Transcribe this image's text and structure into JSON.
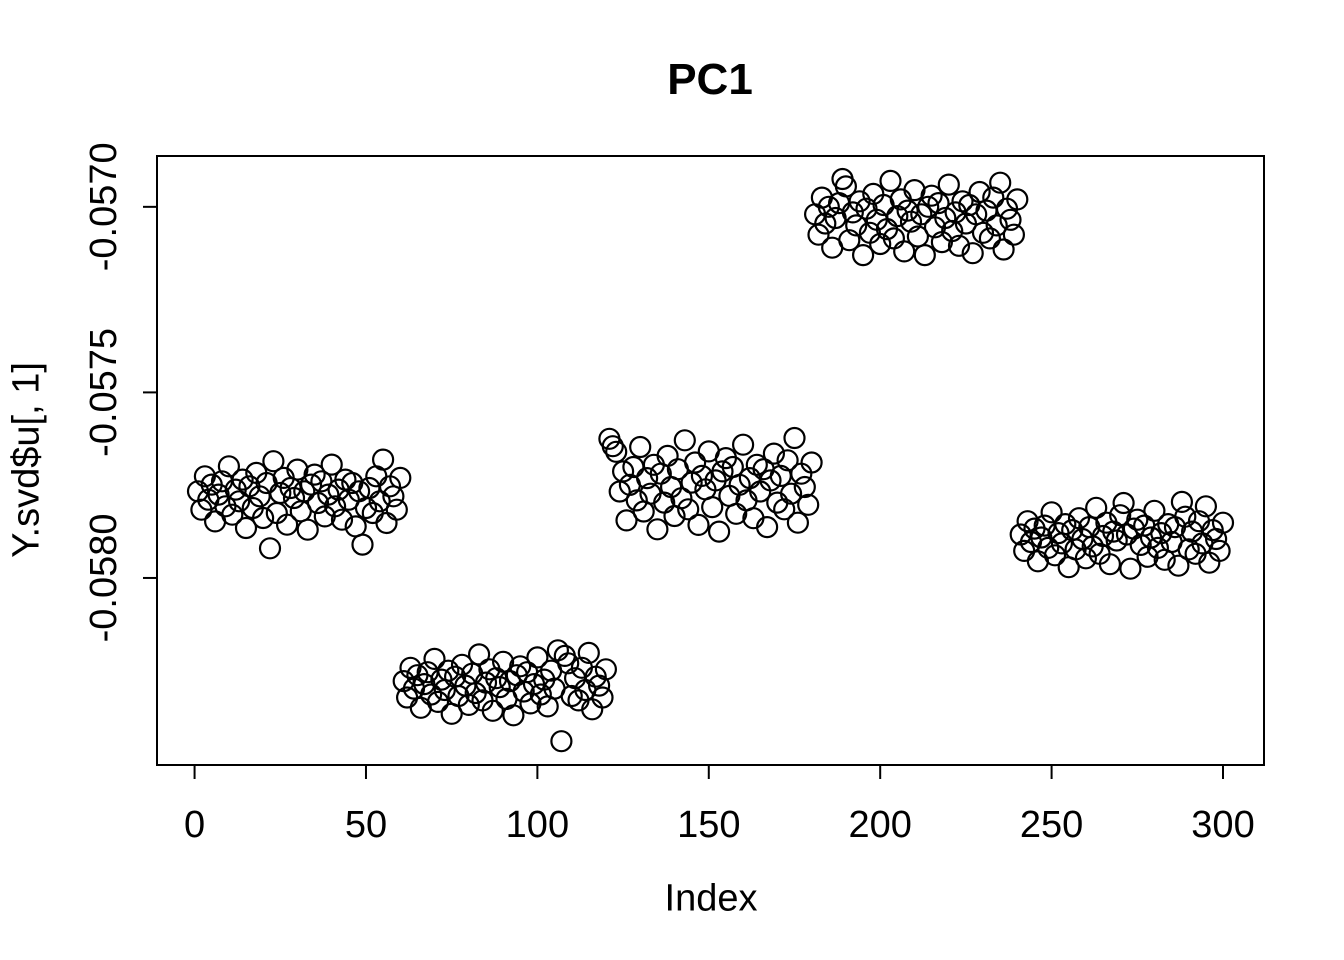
{
  "figure": {
    "background": "#FFFFFF",
    "foreground": "#000000"
  },
  "chart_data": {
    "type": "scatter",
    "title": "PC1",
    "xlabel": "Index",
    "ylabel": "Y.svd$u[, 1]",
    "marker": "open-circle",
    "point_color": "#000000",
    "grid": false,
    "legend": null,
    "xlim": [
      -10.96,
      311.96
    ],
    "ylim": [
      -0.058504,
      -0.056863
    ],
    "x_ticks": [
      0,
      50,
      100,
      150,
      200,
      250,
      300
    ],
    "x_tick_labels": [
      "0",
      "50",
      "100",
      "150",
      "200",
      "250",
      "300"
    ],
    "y_ticks": [
      -0.057,
      -0.0575,
      -0.058
    ],
    "y_tick_labels": [
      "-0.0570",
      "-0.0575",
      "-0.0580"
    ],
    "x": [
      1,
      2,
      3,
      4,
      5,
      6,
      7,
      8,
      9,
      10,
      11,
      12,
      13,
      14,
      15,
      16,
      17,
      18,
      19,
      20,
      21,
      22,
      23,
      24,
      25,
      26,
      27,
      28,
      29,
      30,
      31,
      32,
      33,
      34,
      35,
      36,
      37,
      38,
      39,
      40,
      41,
      42,
      43,
      44,
      45,
      46,
      47,
      48,
      49,
      50,
      51,
      52,
      53,
      54,
      55,
      56,
      57,
      58,
      59,
      60,
      61,
      62,
      63,
      64,
      65,
      66,
      67,
      68,
      69,
      70,
      71,
      72,
      73,
      74,
      75,
      76,
      77,
      78,
      79,
      80,
      81,
      82,
      83,
      84,
      85,
      86,
      87,
      88,
      89,
      90,
      91,
      92,
      93,
      94,
      95,
      96,
      97,
      98,
      99,
      100,
      101,
      102,
      103,
      104,
      105,
      106,
      107,
      108,
      109,
      110,
      111,
      112,
      113,
      114,
      115,
      116,
      117,
      118,
      119,
      120,
      121,
      122,
      123,
      124,
      125,
      126,
      127,
      128,
      129,
      130,
      131,
      132,
      133,
      134,
      135,
      136,
      137,
      138,
      139,
      140,
      141,
      142,
      143,
      144,
      145,
      146,
      147,
      148,
      149,
      150,
      151,
      152,
      153,
      154,
      155,
      156,
      157,
      158,
      159,
      160,
      161,
      162,
      163,
      164,
      165,
      166,
      167,
      168,
      169,
      170,
      171,
      172,
      173,
      174,
      175,
      176,
      177,
      178,
      179,
      180,
      181,
      182,
      183,
      184,
      185,
      186,
      187,
      188,
      189,
      190,
      191,
      192,
      193,
      194,
      195,
      196,
      197,
      198,
      199,
      200,
      201,
      202,
      203,
      204,
      205,
      206,
      207,
      208,
      209,
      210,
      211,
      212,
      213,
      214,
      215,
      216,
      217,
      218,
      219,
      220,
      221,
      222,
      223,
      224,
      225,
      226,
      227,
      228,
      229,
      230,
      231,
      232,
      233,
      234,
      235,
      236,
      237,
      238,
      239,
      240,
      241,
      242,
      243,
      244,
      245,
      246,
      247,
      248,
      249,
      250,
      251,
      252,
      253,
      254,
      255,
      256,
      257,
      258,
      259,
      260,
      261,
      262,
      263,
      264,
      265,
      266,
      267,
      268,
      269,
      270,
      271,
      272,
      273,
      274,
      275,
      276,
      277,
      278,
      279,
      280,
      281,
      282,
      283,
      284,
      285,
      286,
      287,
      288,
      289,
      290,
      291,
      292,
      293,
      294,
      295,
      296,
      297,
      298,
      299,
      300
    ],
    "y": [
      -0.0577665,
      -0.057816,
      -0.057726,
      -0.057789,
      -0.0577485,
      -0.0578475,
      -0.0577755,
      -0.0577395,
      -0.057807,
      -0.057699,
      -0.0578295,
      -0.057762,
      -0.0577935,
      -0.057735,
      -0.0578655,
      -0.057753,
      -0.0578115,
      -0.057717,
      -0.05778,
      -0.0578385,
      -0.057744,
      -0.05792,
      -0.0576855,
      -0.057825,
      -0.057771,
      -0.0577305,
      -0.0578565,
      -0.0577575,
      -0.0577845,
      -0.057708,
      -0.0578205,
      -0.0577665,
      -0.05787,
      -0.0577485,
      -0.0577215,
      -0.057798,
      -0.0577395,
      -0.057834,
      -0.0577755,
      -0.0576945,
      -0.057807,
      -0.057762,
      -0.057843,
      -0.057735,
      -0.057789,
      -0.057744,
      -0.057861,
      -0.0577665,
      -0.05791,
      -0.0578115,
      -0.0577575,
      -0.057825,
      -0.057726,
      -0.0577935,
      -0.057681,
      -0.057852,
      -0.057753,
      -0.05778,
      -0.057816,
      -0.0577305,
      -0.058278,
      -0.058322,
      -0.058242,
      -0.058298,
      -0.058262,
      -0.05835,
      -0.058286,
      -0.058254,
      -0.058314,
      -0.058218,
      -0.058334,
      -0.058274,
      -0.058302,
      -0.05825,
      -0.058366,
      -0.058266,
      -0.058318,
      -0.058234,
      -0.05829,
      -0.058342,
      -0.058258,
      -0.05831,
      -0.058206,
      -0.05833,
      -0.058282,
      -0.058246,
      -0.058358,
      -0.05827,
      -0.058294,
      -0.058226,
      -0.058326,
      -0.058278,
      -0.05837,
      -0.058262,
      -0.058238,
      -0.058306,
      -0.058254,
      -0.058338,
      -0.058286,
      -0.058214,
      -0.058314,
      -0.058274,
      -0.058346,
      -0.05825,
      -0.058298,
      -0.058195,
      -0.05844,
      -0.05821,
      -0.05823,
      -0.058318,
      -0.05827,
      -0.05833,
      -0.058242,
      -0.058302,
      -0.058202,
      -0.058354,
      -0.058266,
      -0.05829,
      -0.058322,
      -0.058246,
      -0.057625,
      -0.057645,
      -0.05766,
      -0.057767,
      -0.057713,
      -0.057845,
      -0.057749,
      -0.057701,
      -0.057791,
      -0.057647,
      -0.057821,
      -0.057731,
      -0.057773,
      -0.057695,
      -0.057869,
      -0.057719,
      -0.057797,
      -0.057671,
      -0.057755,
      -0.057833,
      -0.057707,
      -0.057785,
      -0.057629,
      -0.057815,
      -0.057743,
      -0.057689,
      -0.057857,
      -0.057725,
      -0.057761,
      -0.057659,
      -0.057809,
      -0.057737,
      -0.057875,
      -0.057713,
      -0.057677,
      -0.057779,
      -0.057701,
      -0.057827,
      -0.057749,
      -0.057641,
      -0.057791,
      -0.057731,
      -0.057839,
      -0.057695,
      -0.057767,
      -0.057707,
      -0.057863,
      -0.057737,
      -0.057665,
      -0.057797,
      -0.057725,
      -0.057815,
      -0.057683,
      -0.057773,
      -0.057623,
      -0.057851,
      -0.057719,
      -0.057755,
      -0.057803,
      -0.057689,
      -0.05702,
      -0.057075,
      -0.056975,
      -0.057045,
      -0.057,
      -0.05711,
      -0.05703,
      -0.05699,
      -0.056925,
      -0.056945,
      -0.05709,
      -0.057015,
      -0.05705,
      -0.056985,
      -0.05713,
      -0.057005,
      -0.05707,
      -0.056965,
      -0.057035,
      -0.0571,
      -0.056995,
      -0.05706,
      -0.05693,
      -0.057085,
      -0.057025,
      -0.05698,
      -0.05712,
      -0.05701,
      -0.05704,
      -0.056955,
      -0.05708,
      -0.05702,
      -0.05713,
      -0.057,
      -0.05697,
      -0.057055,
      -0.05699,
      -0.057095,
      -0.05703,
      -0.05694,
      -0.057065,
      -0.057015,
      -0.057105,
      -0.056985,
      -0.057045,
      -0.056995,
      -0.057125,
      -0.05702,
      -0.05696,
      -0.05707,
      -0.05701,
      -0.057085,
      -0.056975,
      -0.05705,
      -0.056935,
      -0.057115,
      -0.057005,
      -0.057035,
      -0.057075,
      -0.05698,
      -0.057883,
      -0.057927,
      -0.057847,
      -0.057903,
      -0.057867,
      -0.057955,
      -0.057891,
      -0.057859,
      -0.057919,
      -0.057823,
      -0.057939,
      -0.057879,
      -0.057907,
      -0.057855,
      -0.057971,
      -0.057871,
      -0.057923,
      -0.057839,
      -0.057895,
      -0.057947,
      -0.057863,
      -0.057915,
      -0.057811,
      -0.057935,
      -0.057887,
      -0.057851,
      -0.057963,
      -0.057875,
      -0.057899,
      -0.057831,
      -0.057798,
      -0.057883,
      -0.057975,
      -0.057867,
      -0.057843,
      -0.057911,
      -0.057859,
      -0.057943,
      -0.057891,
      -0.057819,
      -0.057919,
      -0.057879,
      -0.057951,
      -0.057855,
      -0.057903,
      -0.057863,
      -0.057967,
      -0.057795,
      -0.057835,
      -0.057923,
      -0.057875,
      -0.057935,
      -0.057847,
      -0.057907,
      -0.057807,
      -0.057959,
      -0.057871,
      -0.057895,
      -0.057927,
      -0.057851
    ]
  }
}
